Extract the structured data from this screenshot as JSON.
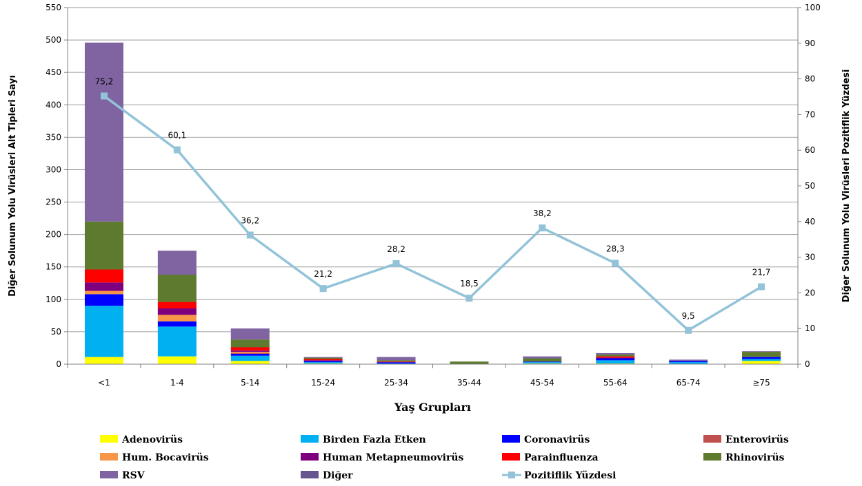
{
  "chart_data": {
    "type": "bar",
    "stacked": true,
    "categories": [
      "<1",
      "1-4",
      "5-14",
      "15-24",
      "25-34",
      "35-44",
      "45-54",
      "55-64",
      "65-74",
      "≥75"
    ],
    "xlabel": "Yaş Grupları",
    "ylabel": "Diğer Solunum Yolu Virüsleri  Alt Tipleri Sayı",
    "y2label": "Diğer Solunum Yolu Virüsleri  Pozitiflik Yüzdesi",
    "ylim": [
      0,
      550
    ],
    "y2lim": [
      0,
      100
    ],
    "yticks": [
      0,
      50,
      100,
      150,
      200,
      250,
      300,
      350,
      400,
      450,
      500,
      550
    ],
    "y2ticks": [
      0,
      10,
      20,
      30,
      40,
      50,
      60,
      70,
      80,
      90,
      100
    ],
    "grid": true,
    "legend_position": "bottom",
    "series": [
      {
        "name": "Adenovirüs",
        "color": "#ffff00",
        "values": [
          11,
          12,
          5,
          1,
          0,
          0,
          1,
          1,
          0,
          5
        ]
      },
      {
        "name": "Birden Fazla Etken",
        "color": "#00b0f0",
        "values": [
          79,
          46,
          8,
          2,
          1,
          0,
          2,
          5,
          3,
          3
        ]
      },
      {
        "name": "Coronavirüs",
        "color": "#0000ff",
        "values": [
          18,
          8,
          3,
          2,
          2,
          0,
          1,
          3,
          2,
          3
        ]
      },
      {
        "name": "Enterovirüs",
        "color": "#c0504d",
        "values": [
          0,
          0,
          1,
          0,
          0,
          0,
          0,
          0,
          0,
          0
        ]
      },
      {
        "name": "Hum. Bocavirüs",
        "color": "#f79646",
        "values": [
          5,
          10,
          2,
          0,
          0,
          0,
          0,
          0,
          0,
          0
        ]
      },
      {
        "name": "Human Metapneumovirüs",
        "color": "#7f007f",
        "values": [
          13,
          10,
          2,
          1,
          0,
          0,
          0,
          1,
          0,
          0
        ]
      },
      {
        "name": "Parainfluenza",
        "color": "#ff0000",
        "values": [
          20,
          10,
          5,
          2,
          1,
          0,
          0,
          2,
          0,
          0
        ]
      },
      {
        "name": "Rhinovirüs",
        "color": "#5e7a2e",
        "values": [
          74,
          42,
          12,
          2,
          2,
          4,
          5,
          3,
          0,
          8
        ]
      },
      {
        "name": "RSV",
        "color": "#8064a2",
        "values": [
          276,
          37,
          17,
          1,
          5,
          0,
          3,
          2,
          2,
          1
        ]
      },
      {
        "name": "Diğer",
        "color": "#66558e",
        "values": [
          0,
          0,
          0,
          0,
          0,
          0,
          0,
          0,
          0,
          0
        ]
      }
    ],
    "line": {
      "name": "Pozitiflik Yüzdesi",
      "color": "#93c3d8",
      "axis": "right",
      "values": [
        75.2,
        60.1,
        36.2,
        21.2,
        28.2,
        18.5,
        38.2,
        28.3,
        9.5,
        21.7
      ],
      "labels": [
        "75,2",
        "60,1",
        "36,2",
        "21,2",
        "28,2",
        "18,5",
        "38,2",
        "28,3",
        "9,5",
        "21,7"
      ]
    }
  }
}
